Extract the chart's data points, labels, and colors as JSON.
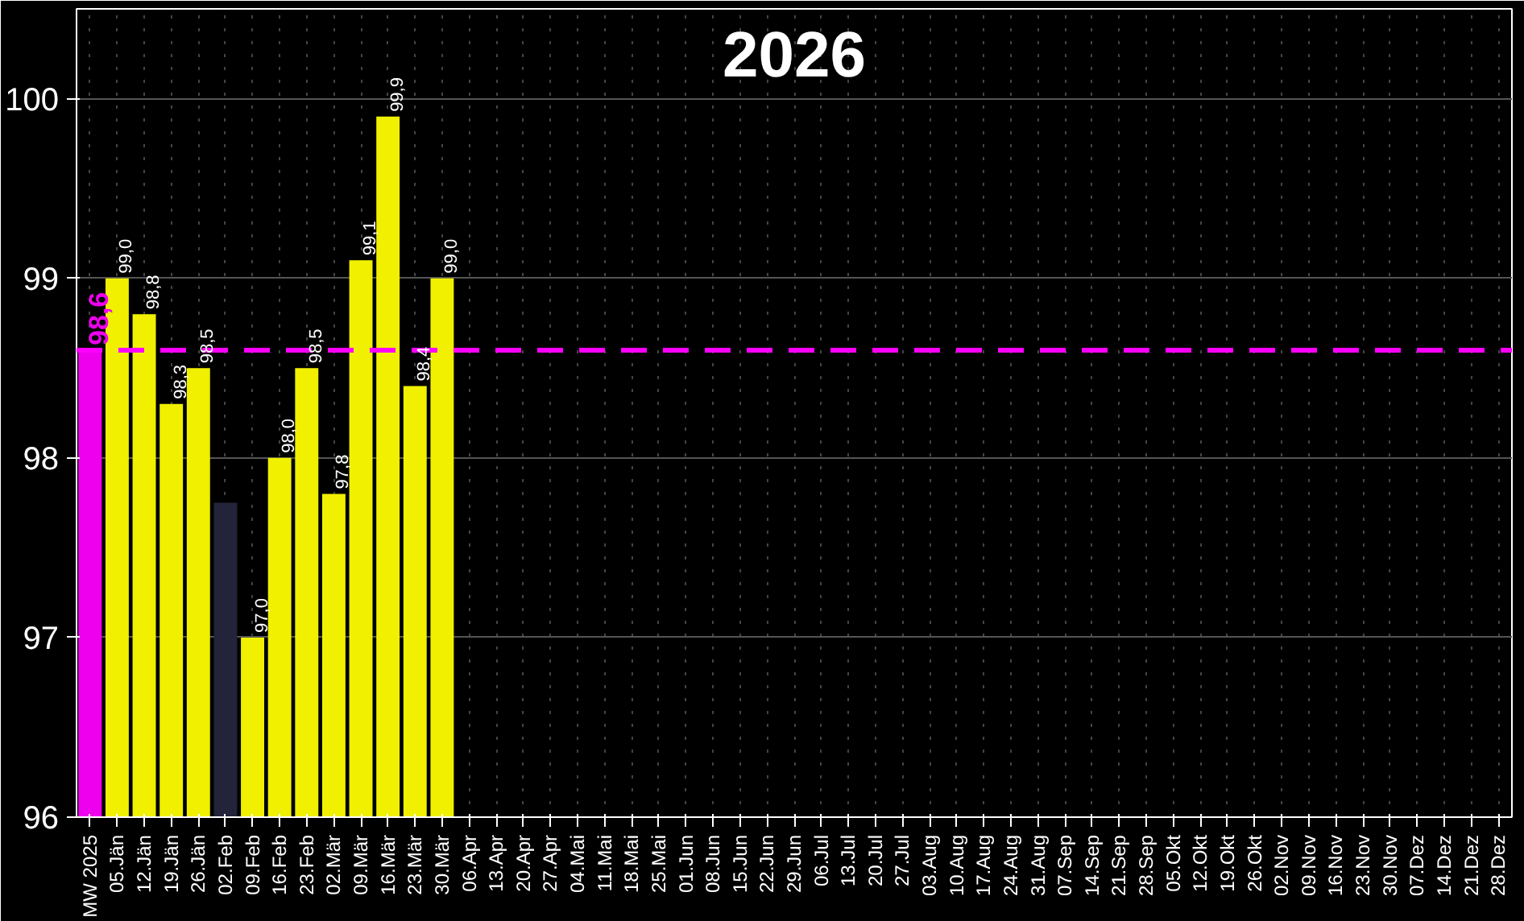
{
  "chart_data": {
    "type": "bar",
    "title": "2026",
    "categories": [
      "MW 2025",
      "05.Jän",
      "12.Jän",
      "19.Jän",
      "26.Jän",
      "02.Feb",
      "09.Feb",
      "16.Feb",
      "23.Feb",
      "02.Mär",
      "09.Mär",
      "16.Mär",
      "23.Mär",
      "30.Mär",
      "06.Apr",
      "13.Apr",
      "20.Apr",
      "27.Apr",
      "04.Mai",
      "11.Mai",
      "18.Mai",
      "25.Mai",
      "01.Jun",
      "08.Jun",
      "15.Jun",
      "22.Jun",
      "29.Jun",
      "06.Jul",
      "13.Jul",
      "20.Jul",
      "27.Jul",
      "03.Aug",
      "10.Aug",
      "17.Aug",
      "24.Aug",
      "31.Aug",
      "07.Sep",
      "14.Sep",
      "21.Sep",
      "28.Sep",
      "05.Okt",
      "12.Okt",
      "19.Okt",
      "26.Okt",
      "02.Nov",
      "09.Nov",
      "16.Nov",
      "23.Nov",
      "30.Nov",
      "07.Dez",
      "14.Dez",
      "21.Dez",
      "28.Dez"
    ],
    "values": [
      98.6,
      99.0,
      98.8,
      98.3,
      98.5,
      97.75,
      97.0,
      98.0,
      98.5,
      97.8,
      99.1,
      99.9,
      98.4,
      99.0,
      null,
      null,
      null,
      null,
      null,
      null,
      null,
      null,
      null,
      null,
      null,
      null,
      null,
      null,
      null,
      null,
      null,
      null,
      null,
      null,
      null,
      null,
      null,
      null,
      null,
      null,
      null,
      null,
      null,
      null,
      null,
      null,
      null,
      null,
      null,
      null,
      null,
      null,
      null
    ],
    "colors": [
      "#ee00ee",
      "#f0f000",
      "#f0f000",
      "#f0f000",
      "#f0f000",
      "#23233a",
      "#f0f000",
      "#f0f000",
      "#f0f000",
      "#f0f000",
      "#f0f000",
      "#f0f000",
      "#f0f000",
      "#f0f000",
      "#f0f000",
      "#f0f000",
      "#f0f000",
      "#f0f000",
      "#f0f000",
      "#f0f000",
      "#f0f000",
      "#f0f000",
      "#f0f000",
      "#f0f000",
      "#f0f000",
      "#f0f000",
      "#f0f000",
      "#f0f000",
      "#f0f000",
      "#f0f000",
      "#f0f000",
      "#f0f000",
      "#f0f000",
      "#f0f000",
      "#f0f000",
      "#f0f000",
      "#f0f000",
      "#f0f000",
      "#f0f000",
      "#f0f000",
      "#f0f000",
      "#f0f000",
      "#f0f000",
      "#f0f000",
      "#f0f000",
      "#f0f000",
      "#f0f000",
      "#f0f000",
      "#f0f000",
      "#f0f000",
      "#f0f000",
      "#f0f000",
      "#f0f000"
    ],
    "value_labels": [
      "98,6",
      "99,0",
      "98,8",
      "98,3",
      "98,5",
      null,
      "97,0",
      "98,0",
      "98,5",
      "97,8",
      "99,1",
      "99,9",
      "98,4",
      "99,0",
      null,
      null,
      null,
      null,
      null,
      null,
      null,
      null,
      null,
      null,
      null,
      null,
      null,
      null,
      null,
      null,
      null,
      null,
      null,
      null,
      null,
      null,
      null,
      null,
      null,
      null,
      null,
      null,
      null,
      null,
      null,
      null,
      null,
      null,
      null,
      null,
      null,
      null,
      null
    ],
    "ylim": [
      96,
      100.5
    ],
    "yticks": [
      96,
      97,
      98,
      99,
      100
    ],
    "ref_lines": [
      {
        "axis": "y",
        "value": 98.6,
        "color": "#ff00ff",
        "line_style": "dashed"
      }
    ],
    "grid": true
  }
}
